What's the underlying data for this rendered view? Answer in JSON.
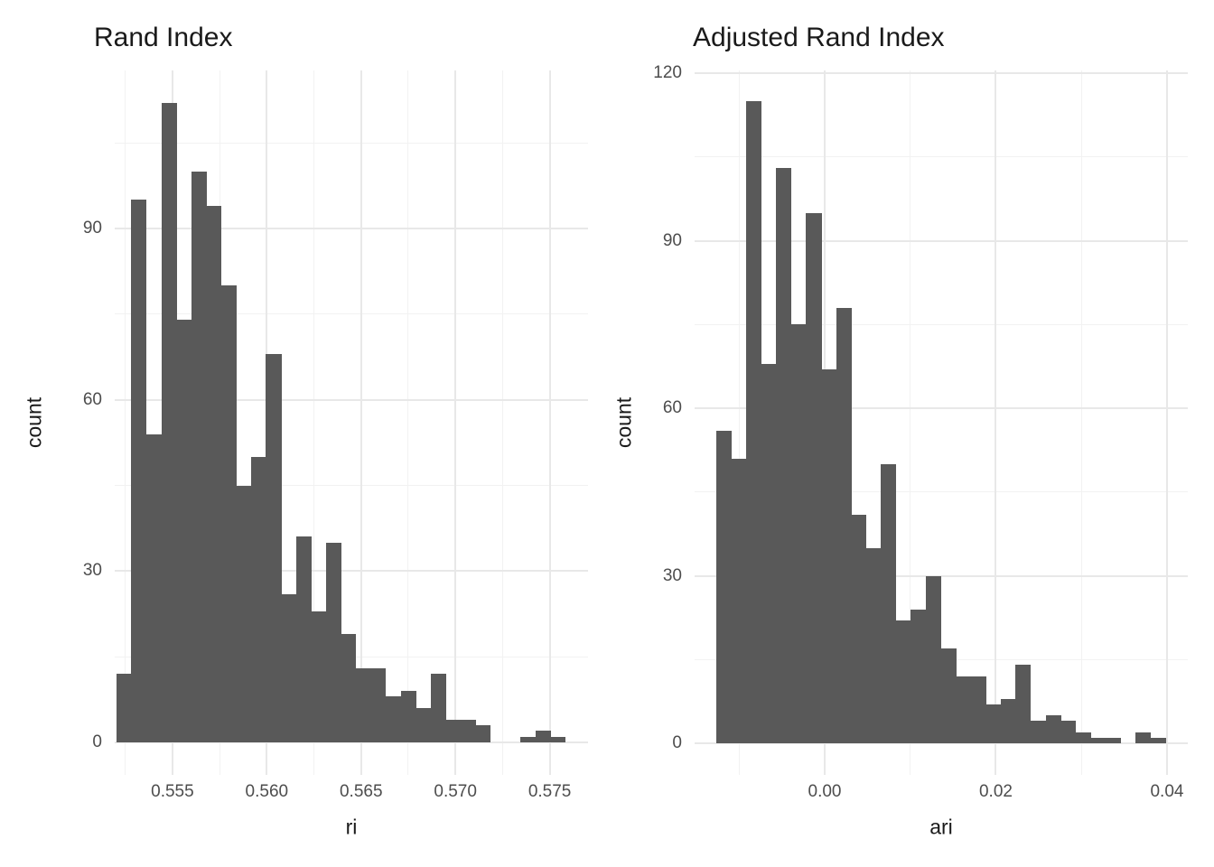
{
  "figure": {
    "background": "#ffffff"
  },
  "colors": {
    "bar_fill": "#595959",
    "grid_major": "#e8e8e8",
    "grid_minor": "#f2f2f2",
    "tick_label": "#4d4d4d",
    "title_text": "#1a1a1a"
  },
  "chart_data": [
    {
      "type": "bar",
      "subtype": "histogram",
      "title": "Rand Index",
      "xlabel": "ri",
      "ylabel": "count",
      "bin_start": 0.55203,
      "bin_width": 0.000793,
      "counts": [
        12,
        95,
        54,
        112,
        74,
        100,
        94,
        80,
        45,
        50,
        68,
        26,
        36,
        23,
        35,
        19,
        13,
        13,
        8,
        9,
        6,
        12,
        4,
        4,
        3,
        0,
        0,
        1,
        2,
        1
      ],
      "x_ticks": {
        "values": [
          0.555,
          0.56,
          0.565,
          0.57,
          0.575
        ],
        "labels": [
          "0.555",
          "0.560",
          "0.565",
          "0.570",
          "0.575"
        ]
      },
      "x_minor": [
        0.5525,
        0.5575,
        0.5625,
        0.5675,
        0.5725
      ],
      "y_ticks": {
        "values": [
          0,
          30,
          60,
          90
        ],
        "labels": [
          "0",
          "30",
          "60",
          "90"
        ]
      },
      "y_minor": [
        15,
        45,
        75,
        105
      ],
      "xlim": [
        0.55194,
        0.57703
      ],
      "ylim": [
        -5.7,
        117.7
      ],
      "grid": true,
      "legend": false
    },
    {
      "type": "bar",
      "subtype": "histogram",
      "title": "Adjusted Rand Index",
      "xlabel": "ari",
      "ylabel": "count",
      "bin_start": -0.012665,
      "bin_width": 0.001749,
      "counts": [
        56,
        51,
        115,
        68,
        103,
        75,
        95,
        67,
        78,
        41,
        35,
        50,
        22,
        24,
        30,
        17,
        12,
        12,
        7,
        8,
        14,
        4,
        5,
        4,
        2,
        1,
        1,
        0,
        2,
        1
      ],
      "x_ticks": {
        "values": [
          0.0,
          0.02,
          0.04
        ],
        "labels": [
          "0.00",
          "0.02",
          "0.04"
        ]
      },
      "x_minor": [
        -0.01,
        0.01,
        0.03
      ],
      "y_ticks": {
        "values": [
          0,
          30,
          60,
          90,
          120
        ],
        "labels": [
          "0",
          "30",
          "60",
          "90",
          "120"
        ]
      },
      "y_minor": [
        15,
        45,
        75,
        105
      ],
      "xlim": [
        -0.0152,
        0.04243
      ],
      "ylim": [
        -5.66,
        120.5
      ],
      "grid": true,
      "legend": false
    }
  ]
}
